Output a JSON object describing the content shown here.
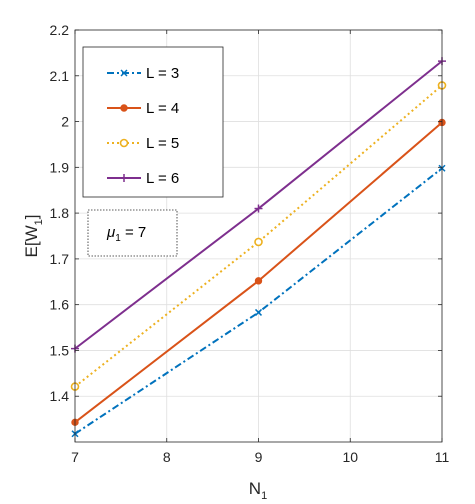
{
  "chart_data": {
    "type": "line",
    "x": [
      7,
      9,
      11
    ],
    "xlim": [
      7,
      11
    ],
    "ylim": [
      1.3,
      2.2
    ],
    "xticks": [
      "7",
      "8",
      "9",
      "10",
      "11"
    ],
    "yticks": [
      "1.4",
      "1.5",
      "1.6",
      "1.7",
      "1.8",
      "1.9",
      "2",
      "2.1",
      "2.2"
    ],
    "xlabel": {
      "main": "N",
      "sub": "1"
    },
    "ylabel": {
      "main": "E[W",
      "sub": "1",
      "close": "]"
    },
    "grid": true,
    "legend_position": "top-left",
    "annotation": {
      "symbol": "μ",
      "sub": "1",
      "rest": " = 7"
    },
    "series": [
      {
        "name": "L  =  3",
        "values": [
          1.318,
          1.583,
          1.898
        ],
        "color": "#0072BD",
        "dash": "7,3,2,3",
        "marker": "x"
      },
      {
        "name": "L  =  4",
        "values": [
          1.343,
          1.652,
          1.998
        ],
        "color": "#D95319",
        "dash": "",
        "marker": "dot"
      },
      {
        "name": "L  =  5",
        "values": [
          1.421,
          1.737,
          2.079
        ],
        "color": "#EDB120",
        "dash": "2,3",
        "marker": "circle"
      },
      {
        "name": "L  =  6",
        "values": [
          1.504,
          1.81,
          2.132
        ],
        "color": "#7E2F8E",
        "dash": "",
        "marker": "plus"
      }
    ]
  }
}
